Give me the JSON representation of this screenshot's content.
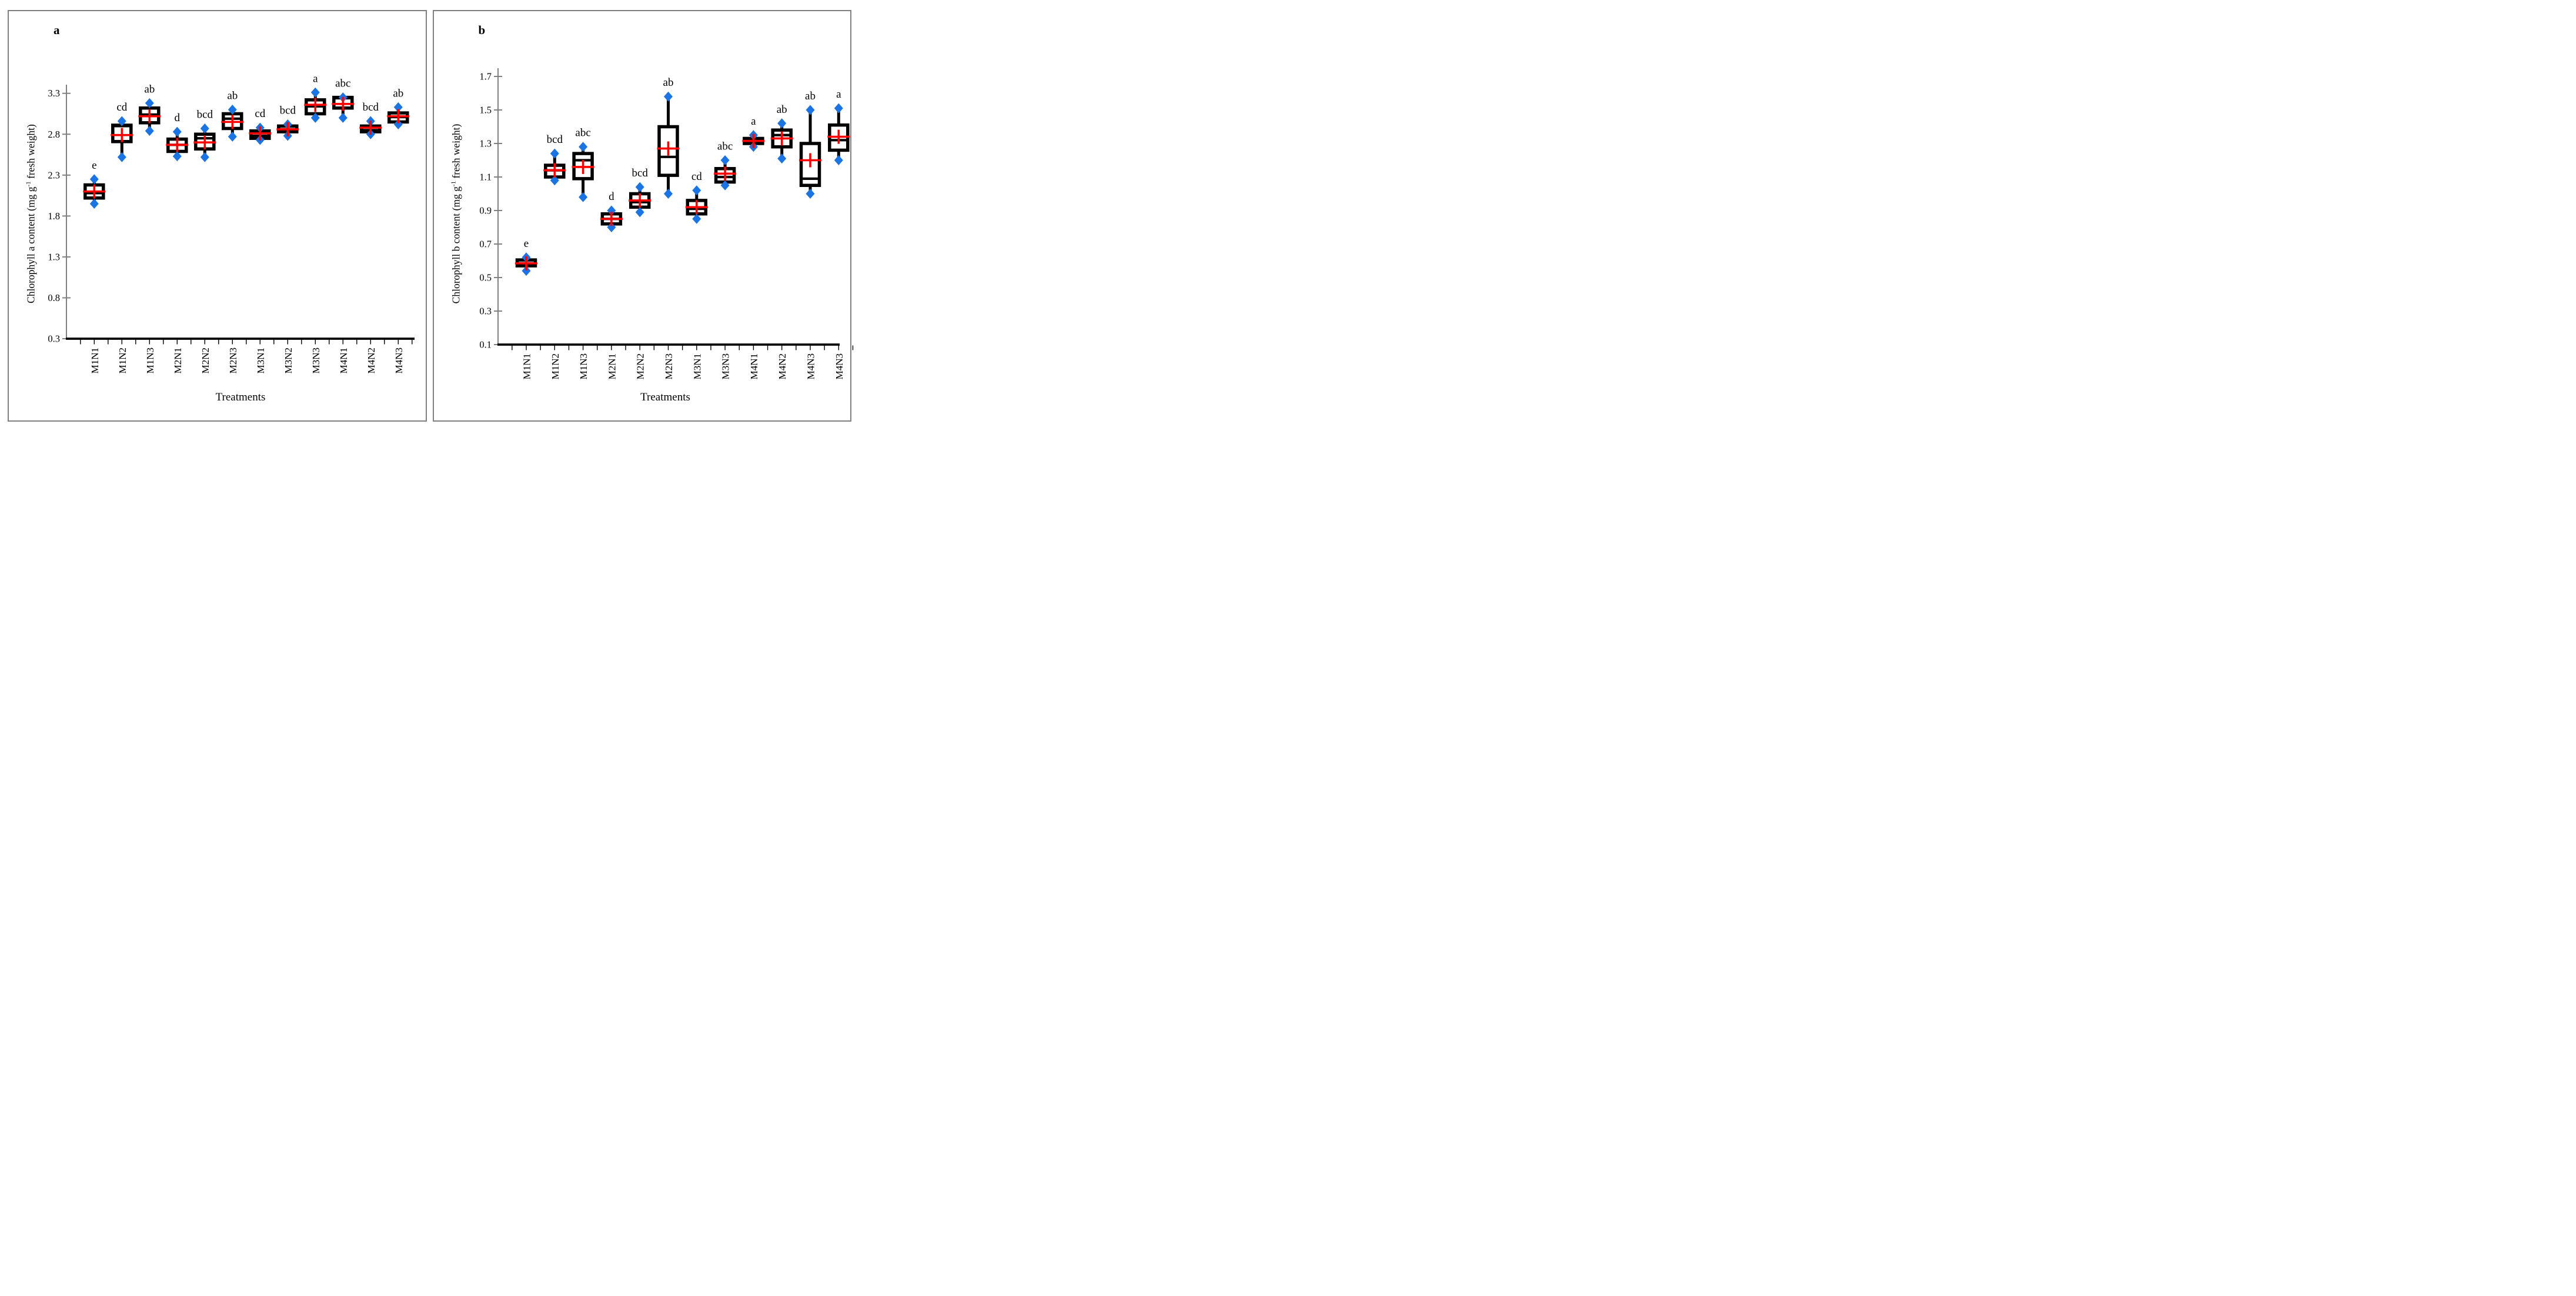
{
  "colors": {
    "box_stroke": "#000000",
    "median_line": "#000000",
    "whisker": "#000000",
    "mean_cross": "#ff0000",
    "marker_fill": "#1b74e4",
    "y_axis": "#808080",
    "x_axis": "#000000",
    "frame_border": "#7f7f7f",
    "text": "#000000",
    "background": "#ffffff"
  },
  "chart_data": [
    {
      "type": "box",
      "panel_label": "a",
      "ylabel_pre": "Chlorophyll a content (mg g",
      "ylabel_sup": "-1",
      "ylabel_post": " fresh weight)",
      "xlabel": "Treatments",
      "y_ticks": [
        0.3,
        0.8,
        1.3,
        1.8,
        2.3,
        2.8,
        3.3
      ],
      "ylim": [
        0.3,
        3.45
      ],
      "grid": "off",
      "legend": "none",
      "categories": [
        "M1N1",
        "M1N2",
        "M1N3",
        "M2N1",
        "M2N2",
        "M2N3",
        "M3N1",
        "M3N2",
        "M3N3",
        "M4N1",
        "M4N2",
        "M4N3"
      ],
      "boxes": [
        {
          "category": "M1N1",
          "sig_letter": "e",
          "whisker_low": 1.95,
          "q1": 2.02,
          "median": 2.08,
          "q3": 2.18,
          "whisker_high": 2.25,
          "mean": 2.1
        },
        {
          "category": "M1N2",
          "sig_letter": "cd",
          "whisker_low": 2.52,
          "q1": 2.71,
          "median": 2.9,
          "q3": 2.91,
          "whisker_high": 2.96,
          "mean": 2.79
        },
        {
          "category": "M1N3",
          "sig_letter": "ab",
          "whisker_low": 2.84,
          "q1": 2.94,
          "median": 3.04,
          "q3": 3.12,
          "whisker_high": 3.18,
          "mean": 3.02
        },
        {
          "category": "M2N1",
          "sig_letter": "d",
          "whisker_low": 2.53,
          "q1": 2.59,
          "median": 2.67,
          "q3": 2.74,
          "whisker_high": 2.83,
          "mean": 2.67
        },
        {
          "category": "M2N2",
          "sig_letter": "bcd",
          "whisker_low": 2.52,
          "q1": 2.62,
          "median": 2.75,
          "q3": 2.8,
          "whisker_high": 2.87,
          "mean": 2.7
        },
        {
          "category": "M2N3",
          "sig_letter": "ab",
          "whisker_low": 2.77,
          "q1": 2.87,
          "median": 2.99,
          "q3": 3.05,
          "whisker_high": 3.1,
          "mean": 2.95
        },
        {
          "category": "M3N1",
          "sig_letter": "cd",
          "whisker_low": 2.73,
          "q1": 2.75,
          "median": 2.78,
          "q3": 2.84,
          "whisker_high": 2.88,
          "mean": 2.81
        },
        {
          "category": "M3N2",
          "sig_letter": "bcd",
          "whisker_low": 2.78,
          "q1": 2.83,
          "median": 2.86,
          "q3": 2.9,
          "whisker_high": 2.92,
          "mean": 2.86
        },
        {
          "category": "M3N3",
          "sig_letter": "a",
          "whisker_low": 3.0,
          "q1": 3.05,
          "median": 3.14,
          "q3": 3.22,
          "whisker_high": 3.31,
          "mean": 3.16
        },
        {
          "category": "M4N1",
          "sig_letter": "abc",
          "whisker_low": 3.0,
          "q1": 3.12,
          "median": 3.24,
          "q3": 3.25,
          "whisker_high": 3.25,
          "mean": 3.17
        },
        {
          "category": "M4N2",
          "sig_letter": "bcd",
          "whisker_low": 2.8,
          "q1": 2.83,
          "median": 2.85,
          "q3": 2.9,
          "whisker_high": 2.96,
          "mean": 2.88
        },
        {
          "category": "M4N3",
          "sig_letter": "ab",
          "whisker_low": 2.92,
          "q1": 2.95,
          "median": 3.01,
          "q3": 3.06,
          "whisker_high": 3.13,
          "mean": 3.02
        }
      ]
    },
    {
      "type": "box",
      "panel_label": "b",
      "ylabel_pre": "Chlorophyll b content (mg g",
      "ylabel_sup": "-1",
      "ylabel_post": " fresh weight)",
      "xlabel": "Treatments",
      "y_ticks": [
        0.1,
        0.3,
        0.5,
        0.7,
        0.9,
        1.1,
        1.3,
        1.5,
        1.7
      ],
      "ylim": [
        0.1,
        1.76
      ],
      "grid": "off",
      "legend": "none",
      "categories": [
        "M1N1",
        "M1N2",
        "M1N3",
        "M2N1",
        "M2N2",
        "M2N3",
        "M3N1",
        "M3N3",
        "M4N1",
        "M4N2",
        "M4N3",
        "M4N3"
      ],
      "boxes": [
        {
          "category": "M1N1",
          "sig_letter": "e",
          "whisker_low": 0.54,
          "q1": 0.57,
          "median": 0.585,
          "q3": 0.605,
          "whisker_high": 0.62,
          "mean": 0.585
        },
        {
          "category": "M1N2",
          "sig_letter": "bcd",
          "whisker_low": 1.08,
          "q1": 1.1,
          "median": 1.14,
          "q3": 1.17,
          "whisker_high": 1.24,
          "mean": 1.14
        },
        {
          "category": "M1N3",
          "sig_letter": "abc",
          "whisker_low": 0.98,
          "q1": 1.09,
          "median": 1.2,
          "q3": 1.24,
          "whisker_high": 1.28,
          "mean": 1.16
        },
        {
          "category": "M2N1",
          "sig_letter": "d",
          "whisker_low": 0.8,
          "q1": 0.82,
          "median": 0.85,
          "q3": 0.88,
          "whisker_high": 0.9,
          "mean": 0.85
        },
        {
          "category": "M2N2",
          "sig_letter": "bcd",
          "whisker_low": 0.89,
          "q1": 0.92,
          "median": 0.95,
          "q3": 1.0,
          "whisker_high": 1.04,
          "mean": 0.96
        },
        {
          "category": "M2N3",
          "sig_letter": "ab",
          "whisker_low": 1.0,
          "q1": 1.11,
          "median": 1.22,
          "q3": 1.4,
          "whisker_high": 1.58,
          "mean": 1.27
        },
        {
          "category": "M3N1",
          "sig_letter": "cd",
          "whisker_low": 0.85,
          "q1": 0.88,
          "median": 0.91,
          "q3": 0.96,
          "whisker_high": 1.02,
          "mean": 0.92
        },
        {
          "category": "M3N3",
          "sig_letter": "abc",
          "whisker_low": 1.05,
          "q1": 1.07,
          "median": 1.1,
          "q3": 1.15,
          "whisker_high": 1.2,
          "mean": 1.12
        },
        {
          "category": "M4N1",
          "sig_letter": "a",
          "whisker_low": 1.28,
          "q1": 1.3,
          "median": 1.31,
          "q3": 1.33,
          "whisker_high": 1.35,
          "mean": 1.315
        },
        {
          "category": "M4N2",
          "sig_letter": "ab",
          "whisker_low": 1.21,
          "q1": 1.28,
          "median": 1.35,
          "q3": 1.38,
          "whisker_high": 1.42,
          "mean": 1.33
        },
        {
          "category": "M4N3",
          "sig_letter": "ab",
          "whisker_low": 1.0,
          "q1": 1.05,
          "median": 1.09,
          "q3": 1.3,
          "whisker_high": 1.5,
          "mean": 1.2
        },
        {
          "category": "M4N3",
          "sig_letter": "a",
          "whisker_low": 1.2,
          "q1": 1.26,
          "median": 1.32,
          "q3": 1.41,
          "whisker_high": 1.51,
          "mean": 1.34
        }
      ]
    }
  ]
}
